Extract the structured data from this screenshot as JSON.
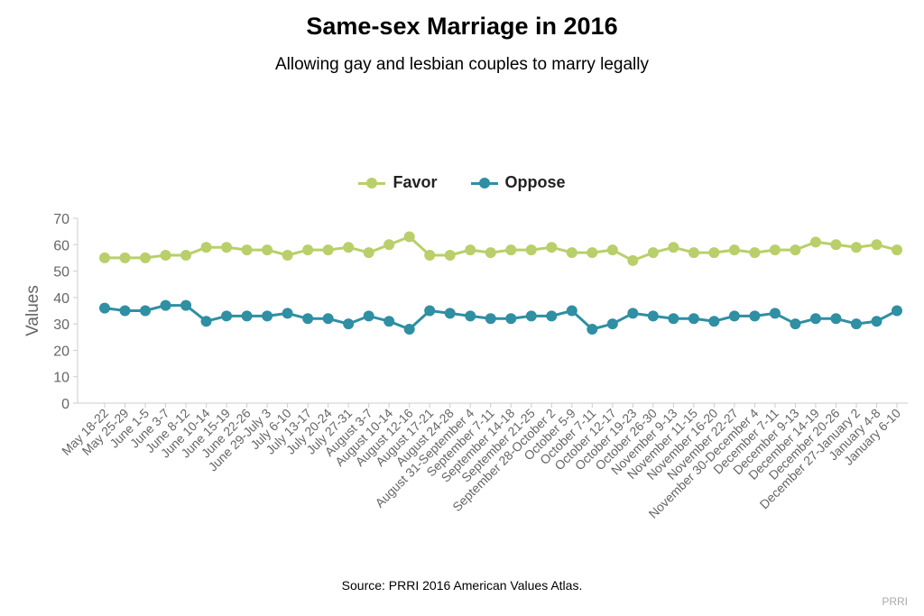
{
  "title": "Same-sex Marriage in 2016",
  "subtitle": "Allowing gay and lesbian couples to marry legally",
  "source": "Source: PRRI 2016 American Values Atlas.",
  "credit": "PRRI",
  "colors": {
    "favor": "#b9cf6a",
    "oppose": "#2f8fa3",
    "axis": "#cccccc",
    "tick_text": "#666666"
  },
  "chart_data": {
    "type": "line",
    "title": "Same-sex Marriage in 2016",
    "subtitle": "Allowing gay and lesbian couples to marry legally",
    "xlabel": "",
    "ylabel": "Values",
    "ylim": [
      0,
      70
    ],
    "yticks": [
      0,
      10,
      20,
      30,
      40,
      50,
      60,
      70
    ],
    "grid": false,
    "legend": "top-center",
    "categories": [
      "May 18-22",
      "May 25-29",
      "June 1-5",
      "June 3-7",
      "June 8-12",
      "June 10-14",
      "June 15-19",
      "June 22-26",
      "June 29-July 3",
      "July 6-10",
      "July 13-17",
      "July 20-24",
      "July 27-31",
      "August 3-7",
      "August 10-14",
      "August 12-16",
      "August 17-21",
      "August 24-28",
      "August 31-September 4",
      "September 7-11",
      "September 14-18",
      "September 21-25",
      "September 28-October 2",
      "October 5-9",
      "October 7-11",
      "October 12-17",
      "October 19-23",
      "October 26-30",
      "November 9-13",
      "November 11-15",
      "November 16-20",
      "November 22-27",
      "November 30-December 4",
      "December 7-11",
      "December 9-13",
      "December 14-19",
      "December 20-26",
      "December 27-January 2",
      "January 4-8",
      "January 6-10"
    ],
    "series": [
      {
        "name": "Favor",
        "color": "#b9cf6a",
        "values": [
          55,
          55,
          55,
          56,
          56,
          59,
          59,
          58,
          58,
          56,
          58,
          58,
          59,
          57,
          60,
          63,
          56,
          56,
          58,
          57,
          58,
          58,
          59,
          57,
          57,
          58,
          54,
          57,
          59,
          57,
          57,
          58,
          57,
          58,
          58,
          61,
          60,
          59,
          60,
          58
        ]
      },
      {
        "name": "Oppose",
        "color": "#2f8fa3",
        "values": [
          36,
          35,
          35,
          37,
          37,
          31,
          33,
          33,
          33,
          34,
          32,
          32,
          30,
          33,
          31,
          28,
          35,
          34,
          33,
          32,
          32,
          33,
          33,
          35,
          28,
          30,
          34,
          33,
          32,
          32,
          31,
          33,
          33,
          34,
          30,
          32,
          32,
          30,
          31,
          35
        ]
      }
    ]
  }
}
